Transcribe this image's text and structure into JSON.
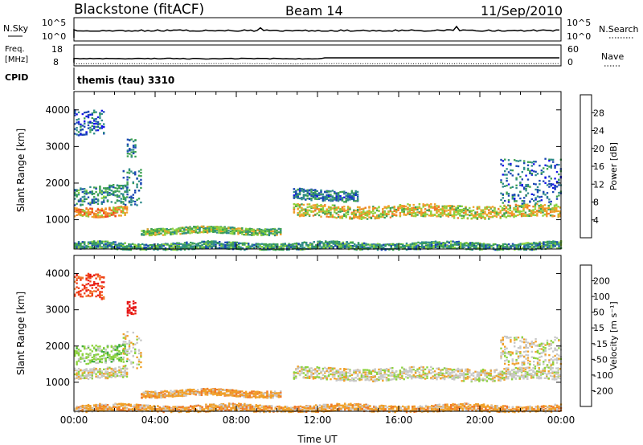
{
  "header": {
    "site": "Blackstone (fitACF)",
    "beam": "Beam 14",
    "date": "11/Sep/2010"
  },
  "top_panels": {
    "nsky_label": "N.Sky",
    "nsky_ticks": [
      "10^5",
      "10^0"
    ],
    "nsearch_label": "N.Search",
    "freq_label_1": "Freq.",
    "freq_label_2": "[MHz]",
    "freq_ticks": [
      "18",
      "8"
    ],
    "nave_label": "Nave",
    "nave_ticks": [
      "60",
      "0"
    ],
    "cpid_label": "CPID",
    "cpid_text": "themis (tau) 3310"
  },
  "chart_data": [
    {
      "type": "heatmap",
      "name": "power",
      "xlabel": "Time UT",
      "ylabel": "Slant Range [km]",
      "xlim": [
        0,
        24
      ],
      "ylim": [
        200,
        4500
      ],
      "x_ticks": [
        "00:00",
        "04:00",
        "08:00",
        "12:00",
        "16:00",
        "20:00",
        "00:00"
      ],
      "y_ticks": [
        "1000",
        "2000",
        "3000",
        "4000"
      ],
      "colorbar": {
        "label": "Power [dB]",
        "ticks": [
          "4",
          "8",
          "12",
          "16",
          "20",
          "24",
          "28"
        ],
        "colors": [
          "#1414e6",
          "#1a46b4",
          "#2e8a8a",
          "#3ca050",
          "#8cd23c",
          "#f0a028",
          "#f07828",
          "#f04018",
          "#e61414"
        ],
        "range": [
          0,
          32
        ]
      },
      "echo_regions": [
        {
          "t0": 0.0,
          "t1": 2.6,
          "r_center": 1250,
          "r_half": 130,
          "level": 22
        },
        {
          "t0": 0.0,
          "t1": 2.6,
          "r_center": 1700,
          "r_half": 250,
          "level": 9
        },
        {
          "t0": 2.4,
          "t1": 3.3,
          "r_center": 1900,
          "r_half": 500,
          "level": 8
        },
        {
          "t0": 3.3,
          "t1": 10.2,
          "r_center": 720,
          "r_half": 90,
          "level": 14
        },
        {
          "t0": 10.8,
          "t1": 24.0,
          "r_center": 1250,
          "r_half": 170,
          "level": 18
        },
        {
          "t0": 10.8,
          "t1": 14.0,
          "r_center": 1700,
          "r_half": 150,
          "level": 7
        },
        {
          "t0": 0.0,
          "t1": 1.5,
          "r_center": 3700,
          "r_half": 350,
          "level": 6
        },
        {
          "t0": 2.6,
          "t1": 3.0,
          "r_center": 2950,
          "r_half": 250,
          "level": 7
        },
        {
          "t0": 21.0,
          "t1": 24.0,
          "r_center": 2100,
          "r_half": 600,
          "level": 6
        },
        {
          "t0": 0.0,
          "t1": 24.0,
          "r_center": 300,
          "r_half": 100,
          "level": 10
        }
      ]
    },
    {
      "type": "heatmap",
      "name": "velocity",
      "xlabel": "Time UT",
      "ylabel": "Slant Range [km]",
      "xlim": [
        0,
        24
      ],
      "ylim": [
        200,
        4500
      ],
      "x_ticks": [
        "00:00",
        "04:00",
        "08:00",
        "12:00",
        "16:00",
        "20:00",
        "00:00"
      ],
      "y_ticks": [
        "1000",
        "2000",
        "3000",
        "4000"
      ],
      "colorbar": {
        "label": "Velocity [m s⁻¹]",
        "ticks": [
          "200",
          "100",
          "50",
          "15",
          "-15",
          "-50",
          "-100",
          "-200"
        ],
        "colors": [
          "#1e3cc8",
          "#1e82a0",
          "#3caa3c",
          "#8cd23c",
          "#c8c8c8",
          "#f0a028",
          "#f07828",
          "#f04018",
          "#e61414"
        ]
      },
      "echo_regions": [
        {
          "t0": 0.0,
          "t1": 2.6,
          "r_center": 1300,
          "r_half": 150,
          "level": 4
        },
        {
          "t0": 0.0,
          "t1": 2.6,
          "r_center": 1800,
          "r_half": 250,
          "level": 3
        },
        {
          "t0": 2.4,
          "t1": 3.3,
          "r_center": 1900,
          "r_half": 500,
          "level": 4
        },
        {
          "t0": 3.3,
          "t1": 10.2,
          "r_center": 720,
          "r_half": 90,
          "level": 5
        },
        {
          "t0": 10.8,
          "t1": 24.0,
          "r_center": 1250,
          "r_half": 170,
          "level": 4
        },
        {
          "t0": 0.0,
          "t1": 1.5,
          "r_center": 3700,
          "r_half": 350,
          "level": 7
        },
        {
          "t0": 2.6,
          "t1": 3.0,
          "r_center": 3050,
          "r_half": 200,
          "level": 8
        },
        {
          "t0": 21.0,
          "t1": 24.0,
          "r_center": 1900,
          "r_half": 400,
          "level": 4
        },
        {
          "t0": 0.0,
          "t1": 24.0,
          "r_center": 300,
          "r_half": 100,
          "level": 5
        }
      ]
    }
  ]
}
